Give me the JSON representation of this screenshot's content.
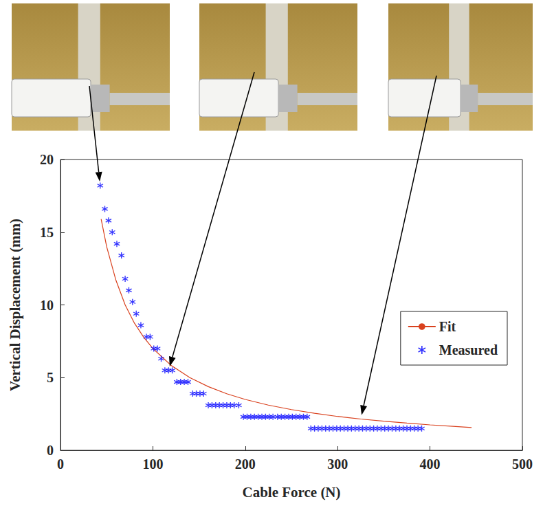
{
  "chart_data": {
    "type": "scatter",
    "x_label": "Cable Force (N)",
    "y_label": "Vertical Displacement (mm)",
    "xlim": [
      0,
      500
    ],
    "xticks": [
      0,
      100,
      200,
      300,
      400,
      500
    ],
    "ylim": [
      0,
      20
    ],
    "yticks": [
      0,
      5,
      10,
      15,
      20
    ],
    "grid": false,
    "legend": "upper right",
    "series": [
      {
        "name": "Fit",
        "type": "line",
        "color": "#d9411e",
        "line_style": "solid",
        "x": [
          44,
          50,
          60,
          70,
          80,
          90,
          100,
          120,
          140,
          160,
          180,
          200,
          225,
          250,
          275,
          300,
          325,
          350,
          375,
          400,
          425,
          445
        ],
        "values": [
          15.9,
          14.0,
          11.7,
          10.0,
          8.75,
          7.78,
          7.0,
          5.83,
          5.0,
          4.38,
          3.89,
          3.5,
          3.11,
          2.8,
          2.55,
          2.33,
          2.15,
          2.0,
          1.87,
          1.75,
          1.65,
          1.57
        ]
      },
      {
        "name": "Measured",
        "type": "scatter",
        "color": "#0000ff",
        "marker": "asterisk",
        "x": [
          43,
          48,
          52,
          56,
          61,
          66,
          70,
          74,
          78,
          82,
          87,
          93,
          97,
          101,
          105,
          109,
          113,
          117,
          121,
          126,
          130,
          134,
          138,
          143,
          147,
          151,
          155,
          160,
          164,
          168,
          172,
          176,
          180,
          184,
          188,
          193,
          198,
          202,
          206,
          210,
          214,
          218,
          222,
          226,
          230,
          235,
          239,
          243,
          247,
          251,
          255,
          259,
          263,
          267,
          271,
          275,
          279,
          283,
          287,
          291,
          295,
          299,
          303,
          307,
          311,
          315,
          319,
          323,
          327,
          331,
          335,
          339,
          343,
          347,
          351,
          355,
          359,
          363,
          367,
          371,
          375,
          379,
          383,
          387,
          391
        ],
        "values": [
          18.2,
          16.6,
          15.8,
          15.0,
          14.2,
          13.4,
          11.8,
          11.0,
          10.2,
          9.4,
          8.6,
          7.8,
          7.8,
          7.0,
          7.0,
          6.3,
          5.5,
          5.5,
          5.5,
          4.7,
          4.7,
          4.7,
          4.7,
          3.9,
          3.9,
          3.9,
          3.9,
          3.1,
          3.1,
          3.1,
          3.1,
          3.1,
          3.1,
          3.1,
          3.1,
          3.1,
          2.3,
          2.3,
          2.3,
          2.3,
          2.3,
          2.3,
          2.3,
          2.3,
          2.3,
          2.3,
          2.3,
          2.3,
          2.3,
          2.3,
          2.3,
          2.3,
          2.3,
          2.3,
          1.5,
          1.5,
          1.5,
          1.5,
          1.5,
          1.5,
          1.5,
          1.5,
          1.5,
          1.5,
          1.5,
          1.5,
          1.5,
          1.5,
          1.5,
          1.5,
          1.5,
          1.5,
          1.5,
          1.5,
          1.5,
          1.5,
          1.5,
          1.5,
          1.5,
          1.5,
          1.5,
          1.5,
          1.5,
          1.5,
          1.5
        ]
      }
    ]
  }
}
